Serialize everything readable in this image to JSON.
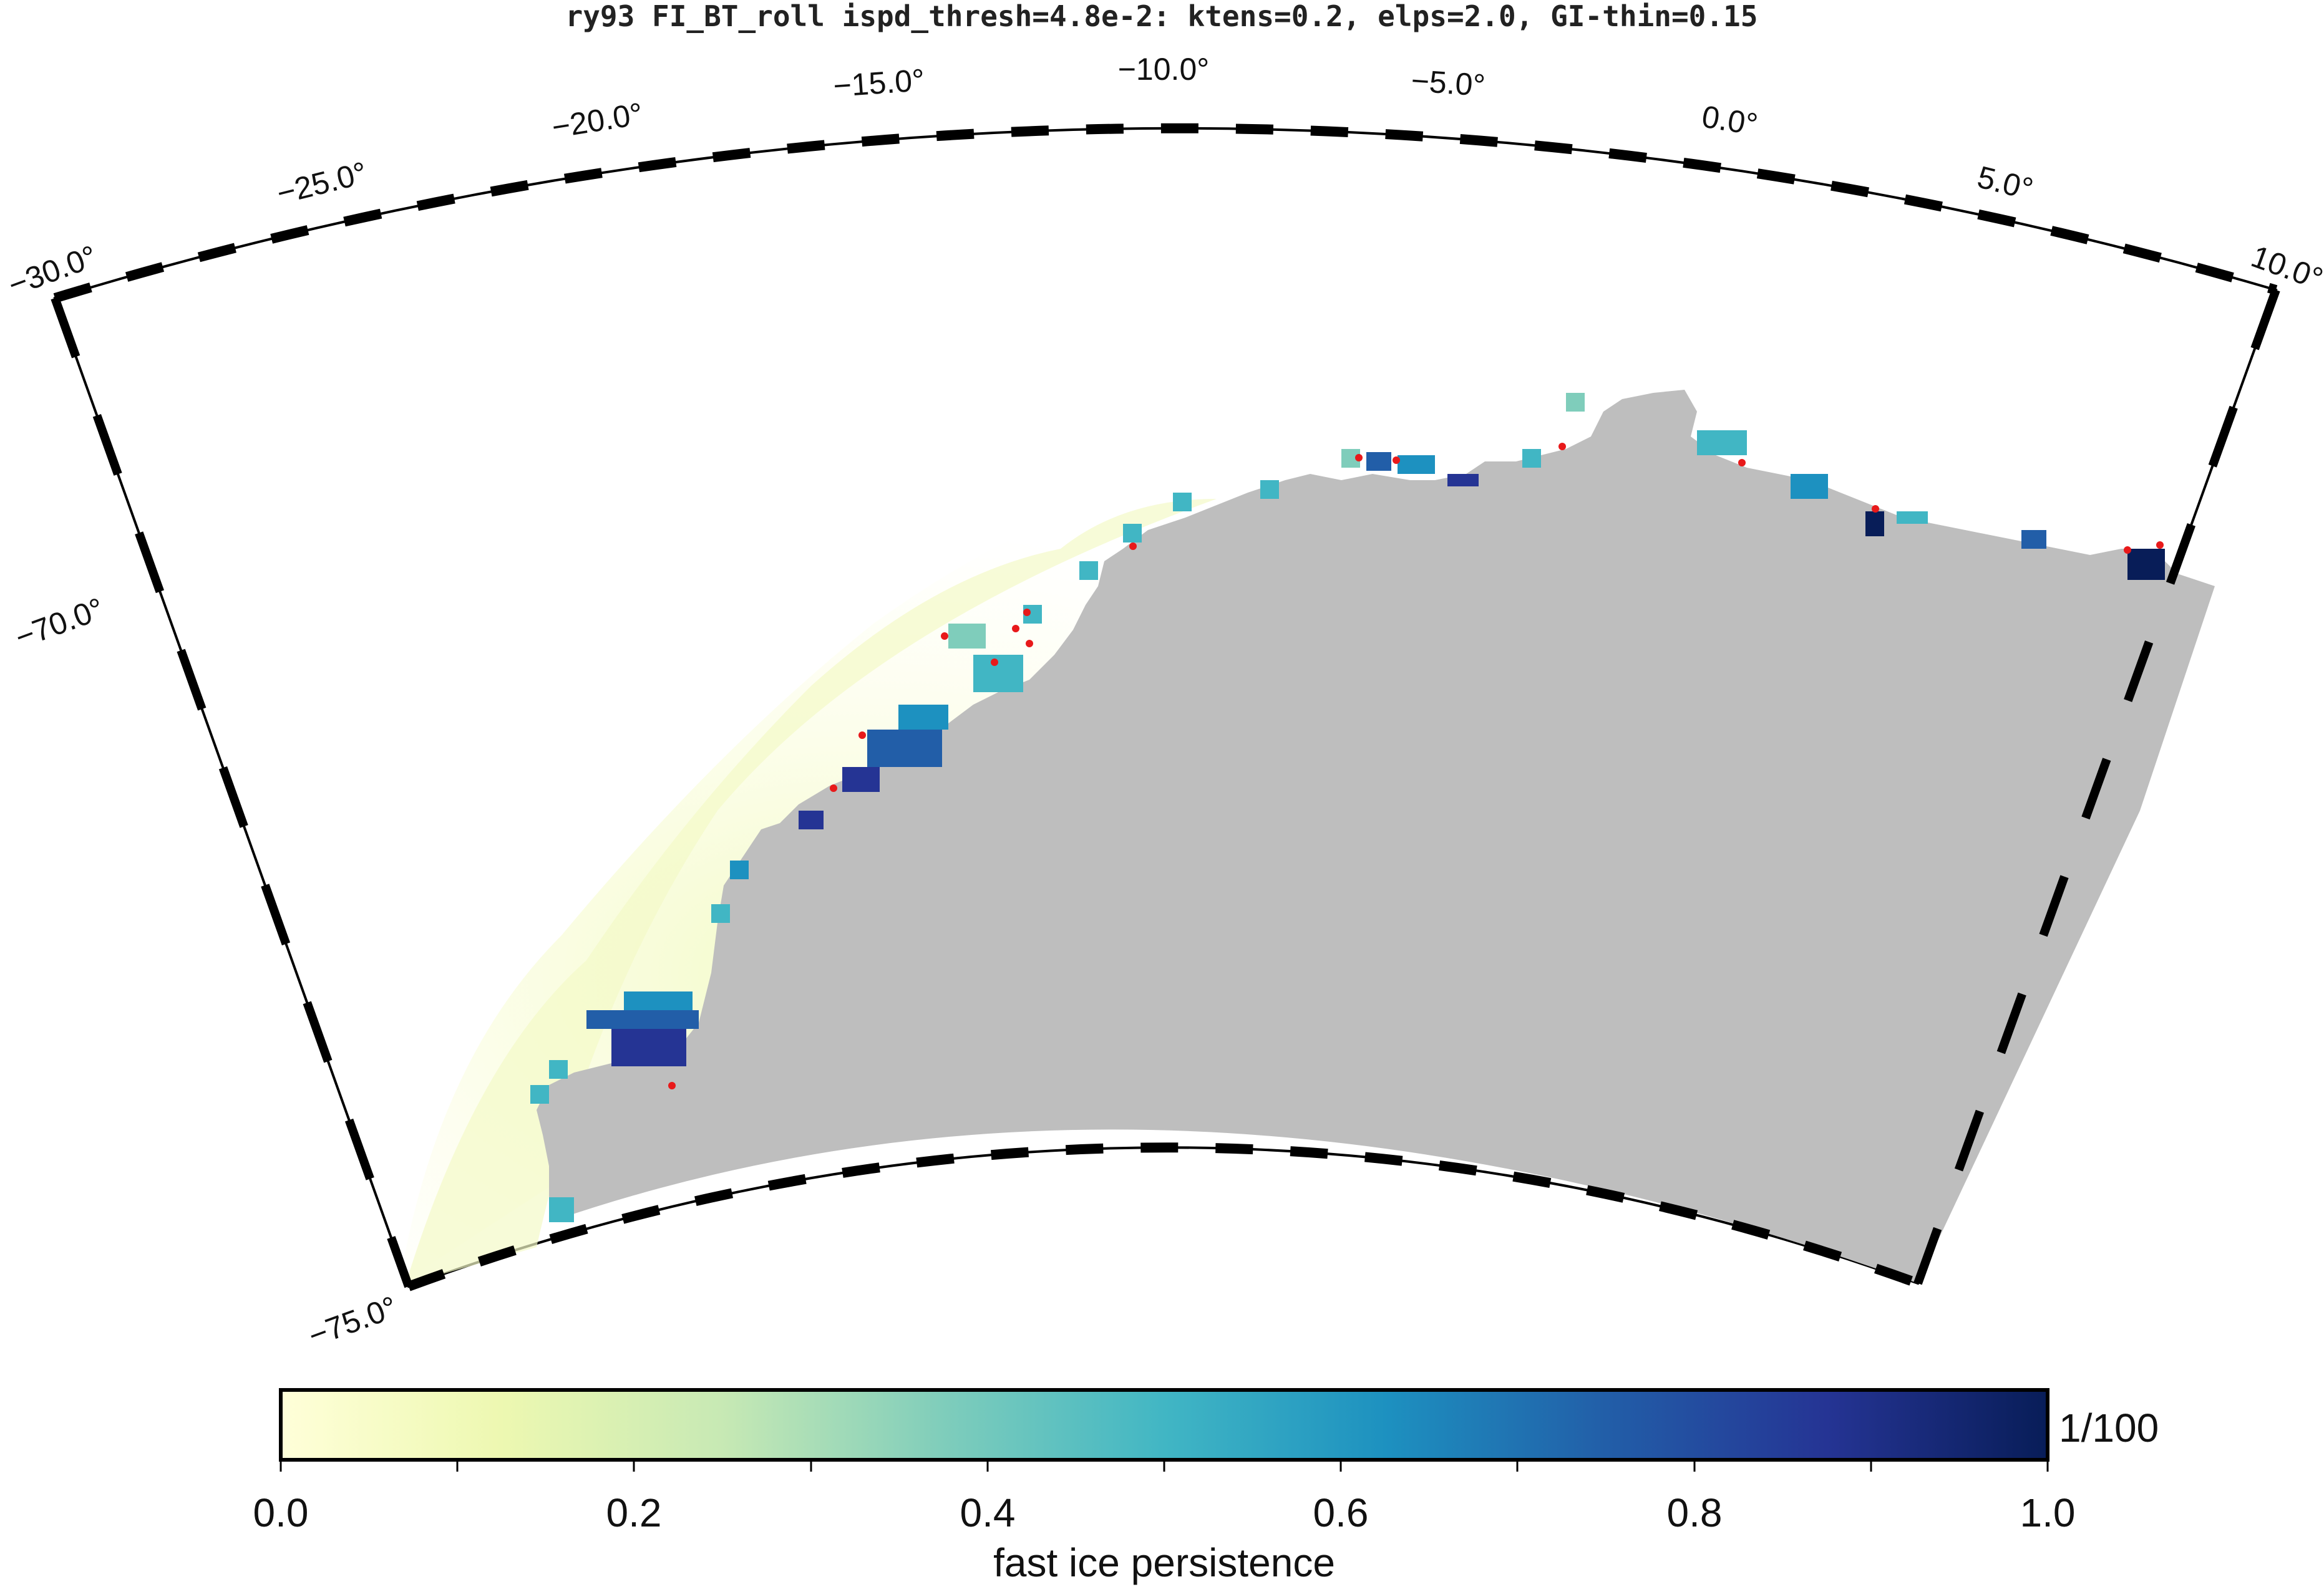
{
  "map": {
    "title": "ry93 FI_BT_roll ispd_thresh=4.8e-2: ktens=0.2, elps=2.0, GI-thin=0.15",
    "projection": "polar stereographic (south)",
    "lon_labels": [
      "−30.0°",
      "−25.0°",
      "−20.0°",
      "−15.0°",
      "−10.0°",
      "−5.0°",
      "0.0°",
      "5.0°",
      "10.0°"
    ],
    "lat_labels": [
      "−70.0°",
      "−75.0°"
    ],
    "land_color": "#bebebe",
    "grounded_iceberg_color": "#e8191a",
    "background": "#ffffff"
  },
  "colorbar": {
    "label": "fast ice persistence",
    "ticks": [
      "0.0",
      "0.2",
      "0.4",
      "0.6",
      "0.8",
      "1.0"
    ],
    "range": [
      0,
      1
    ],
    "unit_annotation": "1/100",
    "colormap": [
      "#ffffd9",
      "#edf8b1",
      "#c7e9b4",
      "#7fcdbb",
      "#41b6c4",
      "#1d91c0",
      "#225ea8",
      "#253494",
      "#081d58"
    ]
  }
}
